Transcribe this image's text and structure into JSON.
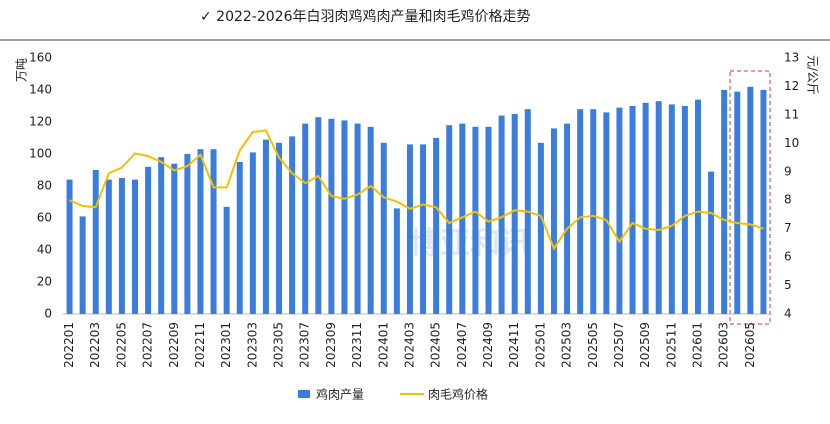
{
  "chart_data": {
    "type": "bar-line",
    "title": "✓  2022-2026年白羽肉鸡鸡肉产量和肉毛鸡价格走势",
    "y_label": "万吨",
    "y2_label": "元/公斤",
    "watermark": "博亚和讯",
    "categories": [
      "202201",
      null,
      "202203",
      null,
      "202205",
      null,
      "202207",
      null,
      "202209",
      null,
      "202211",
      null,
      "202301",
      null,
      "202303",
      null,
      "202305",
      null,
      "202307",
      null,
      "202309",
      null,
      "202311",
      null,
      "202401",
      null,
      "202403",
      null,
      "202405",
      null,
      "202407",
      null,
      "202409",
      null,
      "202411",
      null,
      "202501",
      null,
      "202503",
      null,
      "202505",
      null,
      "202507",
      null,
      "202509",
      null,
      "202511",
      null,
      "202601",
      null,
      "202603",
      null,
      "202605",
      null
    ],
    "series": [
      {
        "name": "鸡肉产量",
        "color": "#3b7ddd",
        "type": "bar",
        "values": [
          84,
          61,
          90,
          84,
          85,
          84,
          92,
          98,
          94,
          100,
          103,
          103,
          67,
          95,
          101,
          109,
          107,
          111,
          119,
          123,
          122,
          121,
          119,
          117,
          107,
          66,
          106,
          106,
          110,
          118,
          119,
          117,
          117,
          124,
          125,
          128,
          107,
          116,
          119,
          128,
          128,
          126,
          129,
          130,
          132,
          133,
          131,
          130,
          134,
          89,
          140,
          139,
          142,
          140
        ]
      },
      {
        "name": "肉毛鸡价格",
        "color": "#f5c000",
        "type": "line",
        "axis": "y2",
        "values": [
          8.0,
          7.8,
          7.75,
          8.95,
          9.15,
          9.65,
          9.55,
          9.35,
          9.05,
          9.2,
          9.6,
          8.45,
          8.45,
          9.75,
          10.4,
          10.45,
          9.5,
          8.95,
          8.6,
          8.85,
          8.15,
          8.05,
          8.2,
          8.5,
          8.1,
          7.95,
          7.7,
          7.85,
          7.75,
          7.2,
          7.4,
          7.6,
          7.25,
          7.4,
          7.65,
          7.6,
          7.45,
          6.3,
          7.0,
          7.4,
          7.45,
          7.3,
          6.55,
          7.2,
          7.0,
          6.95,
          7.1,
          7.45,
          7.6,
          7.55,
          7.3,
          7.2,
          7.15,
          7.0
        ]
      }
    ],
    "ylim": [
      0,
      160
    ],
    "yticks": [
      0,
      20,
      40,
      60,
      80,
      100,
      120,
      140,
      160
    ],
    "y2lim": [
      4,
      13
    ],
    "y2ticks": [
      4,
      5,
      6,
      7,
      8,
      9,
      10,
      11,
      12,
      13
    ],
    "grid": false,
    "legend": "bottom"
  }
}
